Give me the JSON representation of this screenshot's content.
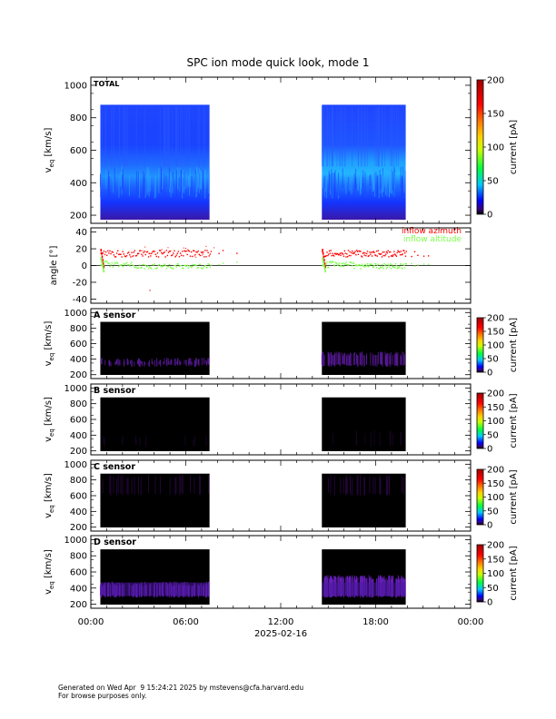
{
  "title": "SPC ion mode quick look, mode 1",
  "footer": {
    "line1": "Generated on Wed Apr  9 15:24:21 2025 by mstevens@cfa.harvard.edu",
    "line2": "For browse purposes only."
  },
  "chart_data": [
    {
      "id": "total",
      "type": "heatmap",
      "label": "TOTAL",
      "ylabel_base": "v",
      "ylabel_sub": "eq",
      "ylabel_unit": "[km/s]",
      "ylim": [
        150,
        1050
      ],
      "yticks": [
        200,
        400,
        600,
        800,
        1000
      ],
      "x_tick_labels": [
        "00:00",
        "06:00",
        "12:00",
        "18:00",
        "00:00"
      ],
      "data_intervals": [
        {
          "start": "00:36",
          "end": "07:30"
        },
        {
          "start": "14:36",
          "end": "19:54"
        }
      ],
      "velocity_top": 880,
      "colorbar": {
        "label": "current [pA]",
        "range": [
          0,
          200
        ],
        "ticks": [
          0,
          50,
          100,
          150,
          200
        ]
      }
    },
    {
      "id": "angle",
      "type": "scatter",
      "ylabel": "angle [°]",
      "ylim": [
        -45,
        45
      ],
      "yticks": [
        -40,
        -20,
        0,
        20,
        40
      ],
      "series": [
        {
          "name": "inflow azimuth",
          "color": "#ff0000",
          "typical_value": 15
        },
        {
          "name": "inflow altitude",
          "color": "#7cff4a",
          "typical_value": 2
        }
      ],
      "zero_line": true
    },
    {
      "id": "a-sensor",
      "type": "heatmap",
      "label": "A sensor",
      "ylabel_base": "v",
      "ylabel_sub": "eq",
      "ylabel_unit": "[km/s]",
      "ylim": [
        150,
        1050
      ],
      "yticks": [
        200,
        400,
        600,
        800,
        1000
      ],
      "colorbar": {
        "label": "current [pA]",
        "range": [
          0,
          200
        ],
        "ticks": [
          0,
          50,
          100,
          150,
          200
        ]
      }
    },
    {
      "id": "b-sensor",
      "type": "heatmap",
      "label": "B sensor",
      "ylabel_base": "v",
      "ylabel_sub": "eq",
      "ylabel_unit": "[km/s]",
      "ylim": [
        150,
        1050
      ],
      "yticks": [
        200,
        400,
        600,
        800,
        1000
      ],
      "colorbar": {
        "label": "current [pA]",
        "range": [
          0,
          200
        ],
        "ticks": [
          0,
          50,
          100,
          150,
          200
        ]
      }
    },
    {
      "id": "c-sensor",
      "type": "heatmap",
      "label": "C sensor",
      "ylabel_base": "v",
      "ylabel_sub": "eq",
      "ylabel_unit": "[km/s]",
      "ylim": [
        150,
        1050
      ],
      "yticks": [
        200,
        400,
        600,
        800,
        1000
      ],
      "colorbar": {
        "label": "current [pA]",
        "range": [
          0,
          200
        ],
        "ticks": [
          0,
          50,
          100,
          150,
          200
        ]
      }
    },
    {
      "id": "d-sensor",
      "type": "heatmap",
      "label": "D sensor",
      "ylabel_base": "v",
      "ylabel_sub": "eq",
      "ylabel_unit": "[km/s]",
      "ylim": [
        150,
        1050
      ],
      "yticks": [
        200,
        400,
        600,
        800,
        1000
      ],
      "x_tick_labels": [
        "00:00",
        "06:00",
        "12:00",
        "18:00",
        "00:00"
      ],
      "xlabel": "2025-02-16",
      "colorbar": {
        "label": "current [pA]",
        "range": [
          0,
          200
        ],
        "ticks": [
          0,
          50,
          100,
          150,
          200
        ]
      }
    }
  ]
}
